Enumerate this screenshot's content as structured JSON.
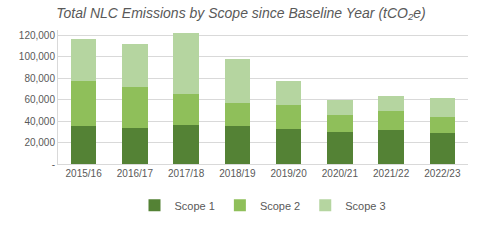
{
  "chart_data": {
    "type": "bar",
    "title": "Total NLC Emissions by Scope since Baseline Year (tCO₂e)",
    "stacked": true,
    "grid": true,
    "legend": "bottom",
    "categories": [
      "2015/16",
      "2016/17",
      "2017/18",
      "2018/19",
      "2019/20",
      "2020/21",
      "2021/22",
      "2022/23"
    ],
    "series": [
      {
        "name": "Scope 1",
        "color": "#548235",
        "values": [
          35000,
          34000,
          36000,
          35000,
          33000,
          30000,
          32000,
          29000
        ]
      },
      {
        "name": "Scope 2",
        "color": "#8fbf5a",
        "values": [
          42000,
          38000,
          29000,
          22000,
          22000,
          16000,
          17000,
          15000
        ]
      },
      {
        "name": "Scope 3",
        "color": "#b5d5a0",
        "values": [
          40000,
          40000,
          57000,
          41000,
          22000,
          14000,
          14000,
          18000
        ]
      }
    ],
    "ylim": [
      0,
      125000
    ],
    "yticks": [
      {
        "value": 0,
        "label": "-"
      },
      {
        "value": 20000,
        "label": "20,000"
      },
      {
        "value": 40000,
        "label": "40,000"
      },
      {
        "value": 60000,
        "label": "60,000"
      },
      {
        "value": 80000,
        "label": "80,000"
      },
      {
        "value": 100000,
        "label": "100,000"
      },
      {
        "value": 120000,
        "label": "120,000"
      }
    ]
  }
}
